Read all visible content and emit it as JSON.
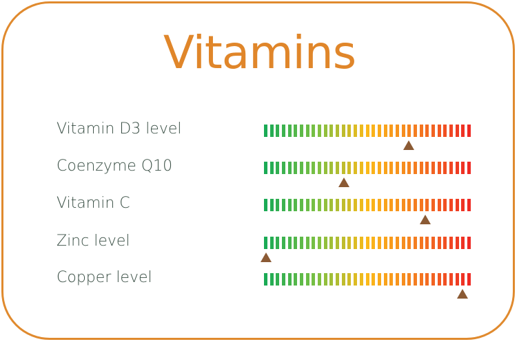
{
  "title": "Vitamins",
  "colors": {
    "border": "#e08a2e",
    "title": "#e0862a",
    "marker": "#8b5a34",
    "scale": [
      "#1aaa55",
      "#7bc043",
      "#fbb919",
      "#f47a20",
      "#ee2a24"
    ]
  },
  "scale_segments": 35,
  "items": [
    {
      "label": "Vitamin D3 level",
      "level": 0.7
    },
    {
      "label": "Coenzyme Q10",
      "level": 0.385
    },
    {
      "label": "Vitamin C",
      "level": 0.78
    },
    {
      "label": "Zinc level",
      "level": 0.01
    },
    {
      "label": "Copper level",
      "level": 0.96
    }
  ]
}
